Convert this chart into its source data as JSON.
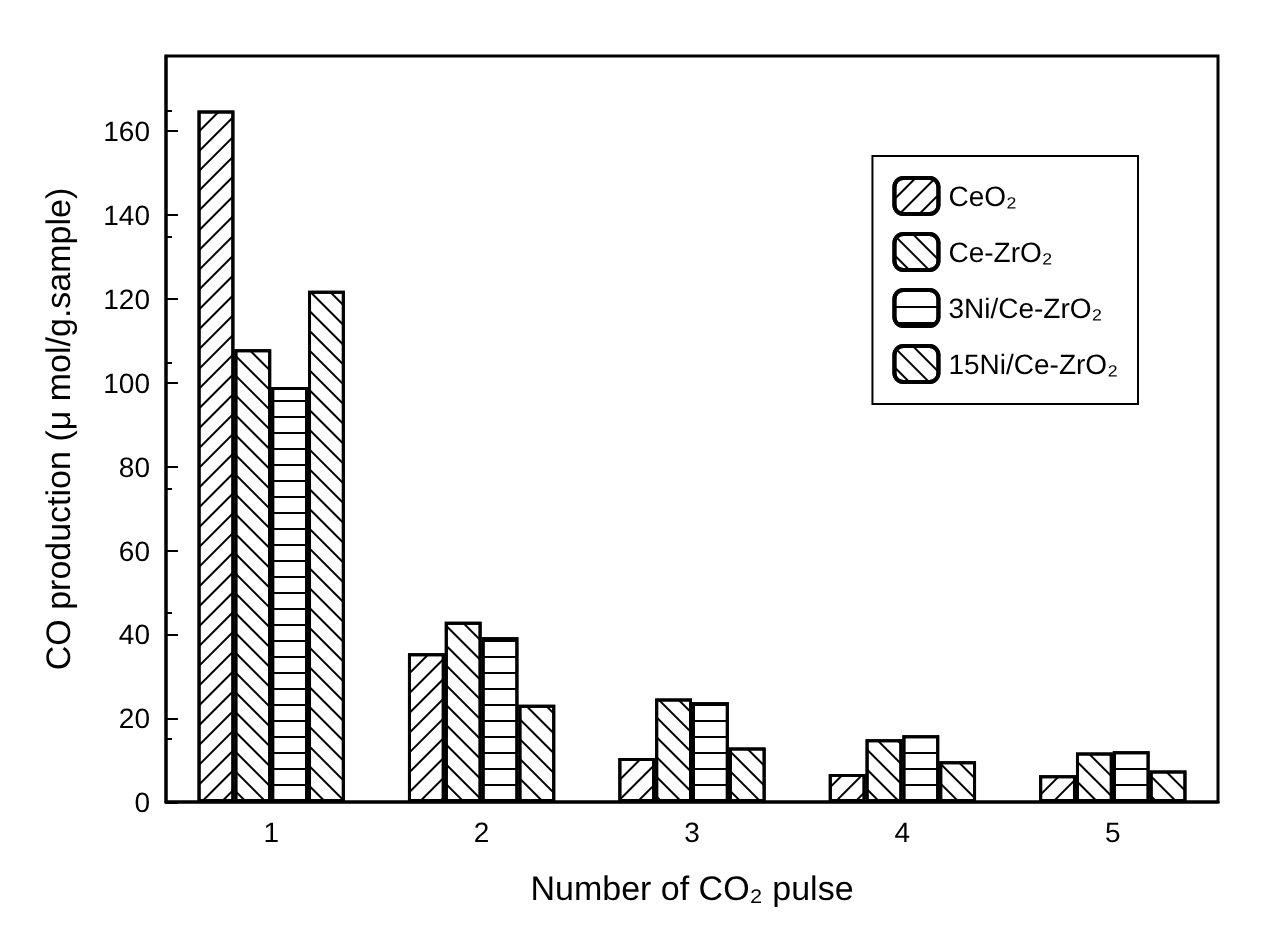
{
  "chart_data": {
    "type": "bar",
    "xlabel": "Number of CO₂ pulse",
    "ylabel": "CO production (μ mol/g.sample)",
    "categories": [
      "1",
      "2",
      "3",
      "4",
      "5"
    ],
    "series": [
      {
        "name": "CeO₂",
        "color": "#ffffff",
        "values": [
          165,
          35.5,
          10.5,
          6.7,
          6.4
        ]
      },
      {
        "name": "Ce-ZrO₂",
        "color": "#ffffff",
        "values": [
          108,
          43,
          24.7,
          15,
          11.8
        ]
      },
      {
        "name": "3Ni/Ce-ZrO₂",
        "color": "#ffffff",
        "values": [
          99,
          39.3,
          23.8,
          15.9,
          12.1
        ]
      },
      {
        "name": "15Ni/Ce-ZrO₂",
        "color": "#ffffff",
        "values": [
          122,
          23.2,
          13,
          9.7,
          7.5
        ]
      }
    ],
    "ylim": [
      0,
      178
    ],
    "yticks": [
      0,
      20,
      40,
      60,
      80,
      100,
      120,
      140,
      160
    ],
    "grid": false,
    "legend": "top right"
  }
}
